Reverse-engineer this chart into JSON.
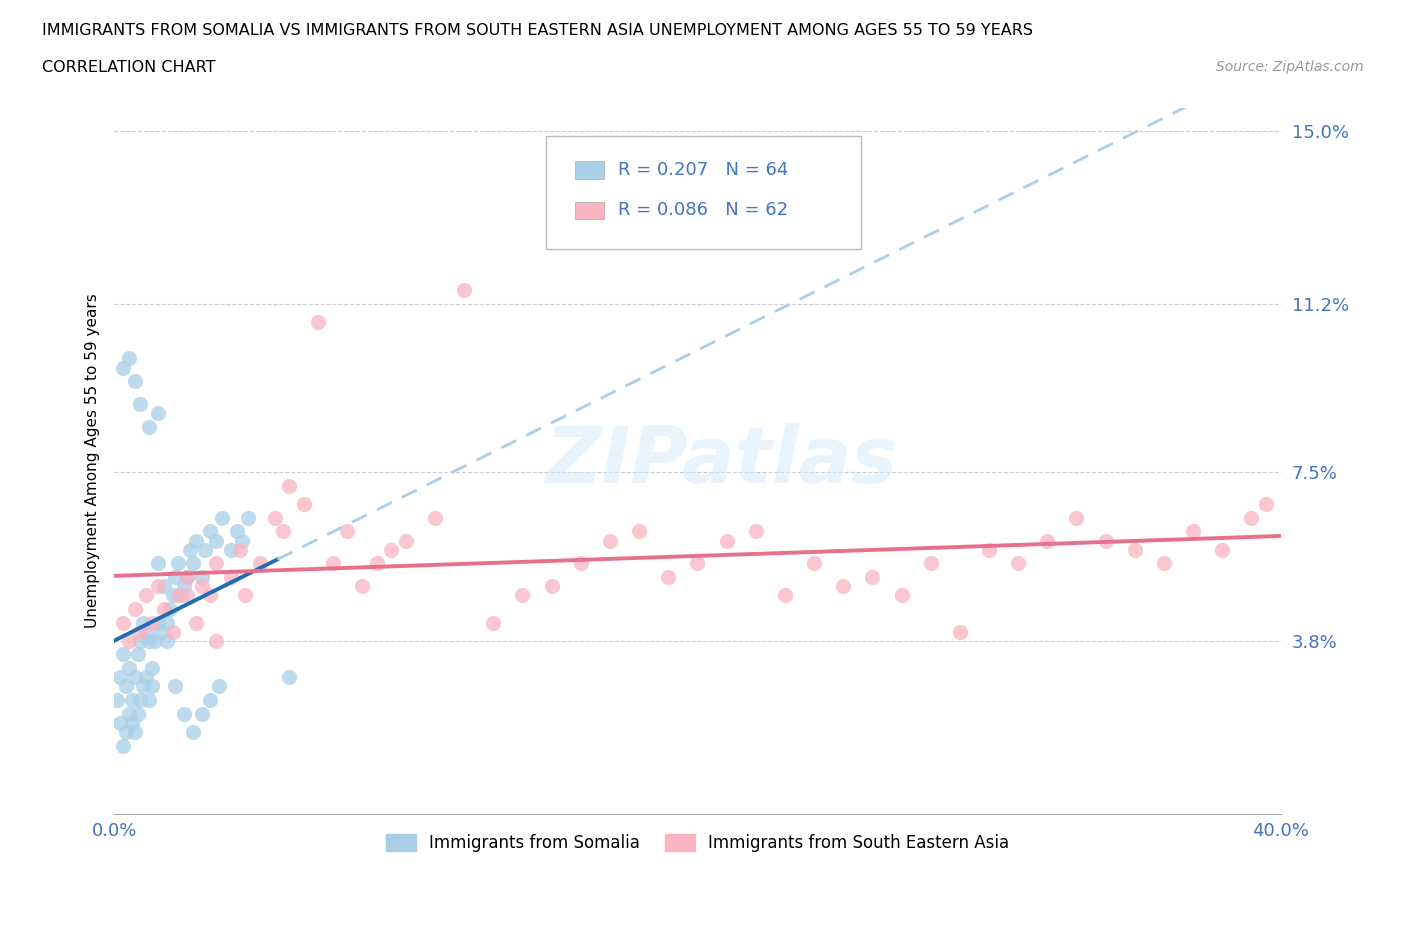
{
  "title_line1": "IMMIGRANTS FROM SOMALIA VS IMMIGRANTS FROM SOUTH EASTERN ASIA UNEMPLOYMENT AMONG AGES 55 TO 59 YEARS",
  "title_line2": "CORRELATION CHART",
  "source_text": "Source: ZipAtlas.com",
  "ylabel": "Unemployment Among Ages 55 to 59 years",
  "xlim": [
    0.0,
    0.4
  ],
  "ylim": [
    0.0,
    0.155
  ],
  "yticks": [
    0.038,
    0.075,
    0.112,
    0.15
  ],
  "ytick_labels": [
    "3.8%",
    "7.5%",
    "11.2%",
    "15.0%"
  ],
  "xticks": [
    0.0,
    0.05,
    0.1,
    0.15,
    0.2,
    0.25,
    0.3,
    0.35,
    0.4
  ],
  "xtick_labels": [
    "0.0%",
    "",
    "",
    "",
    "",
    "",
    "",
    "",
    "40.0%"
  ],
  "color_somalia": "#a8cfe8",
  "color_sea": "#f9b4c0",
  "color_somalia_line": "#1f6db5",
  "color_dashed": "#aacde8",
  "color_sea_line": "#e8708a",
  "legend_r_somalia": "R = 0.207",
  "legend_n_somalia": "N = 64",
  "legend_r_sea": "R = 0.086",
  "legend_n_sea": "N = 62",
  "watermark": "ZIPatlas",
  "somalia_x": [
    0.001,
    0.002,
    0.002,
    0.003,
    0.003,
    0.004,
    0.004,
    0.005,
    0.005,
    0.006,
    0.006,
    0.007,
    0.007,
    0.008,
    0.008,
    0.009,
    0.009,
    0.01,
    0.01,
    0.011,
    0.011,
    0.012,
    0.012,
    0.013,
    0.013,
    0.014,
    0.015,
    0.015,
    0.016,
    0.017,
    0.018,
    0.019,
    0.02,
    0.021,
    0.022,
    0.023,
    0.024,
    0.025,
    0.026,
    0.027,
    0.028,
    0.03,
    0.031,
    0.033,
    0.035,
    0.037,
    0.04,
    0.042,
    0.044,
    0.046,
    0.003,
    0.005,
    0.007,
    0.009,
    0.012,
    0.015,
    0.018,
    0.021,
    0.024,
    0.027,
    0.03,
    0.033,
    0.036,
    0.06
  ],
  "somalia_y": [
    0.025,
    0.02,
    0.03,
    0.015,
    0.035,
    0.018,
    0.028,
    0.022,
    0.032,
    0.02,
    0.025,
    0.018,
    0.03,
    0.022,
    0.035,
    0.025,
    0.038,
    0.028,
    0.042,
    0.03,
    0.04,
    0.025,
    0.038,
    0.028,
    0.032,
    0.038,
    0.042,
    0.055,
    0.04,
    0.05,
    0.038,
    0.045,
    0.048,
    0.052,
    0.055,
    0.048,
    0.05,
    0.052,
    0.058,
    0.055,
    0.06,
    0.052,
    0.058,
    0.062,
    0.06,
    0.065,
    0.058,
    0.062,
    0.06,
    0.065,
    0.098,
    0.1,
    0.095,
    0.09,
    0.085,
    0.088,
    0.042,
    0.028,
    0.022,
    0.018,
    0.022,
    0.025,
    0.028,
    0.03
  ],
  "sea_x": [
    0.003,
    0.005,
    0.007,
    0.009,
    0.011,
    0.013,
    0.015,
    0.017,
    0.02,
    0.022,
    0.025,
    0.028,
    0.03,
    0.033,
    0.035,
    0.04,
    0.043,
    0.045,
    0.05,
    0.055,
    0.058,
    0.06,
    0.065,
    0.07,
    0.075,
    0.08,
    0.085,
    0.09,
    0.095,
    0.1,
    0.11,
    0.12,
    0.13,
    0.14,
    0.15,
    0.16,
    0.17,
    0.18,
    0.19,
    0.2,
    0.21,
    0.22,
    0.23,
    0.24,
    0.25,
    0.26,
    0.27,
    0.28,
    0.29,
    0.3,
    0.31,
    0.32,
    0.33,
    0.34,
    0.35,
    0.36,
    0.37,
    0.38,
    0.39,
    0.395,
    0.025,
    0.035
  ],
  "sea_y": [
    0.042,
    0.038,
    0.045,
    0.04,
    0.048,
    0.042,
    0.05,
    0.045,
    0.04,
    0.048,
    0.052,
    0.042,
    0.05,
    0.048,
    0.055,
    0.052,
    0.058,
    0.048,
    0.055,
    0.065,
    0.062,
    0.072,
    0.068,
    0.108,
    0.055,
    0.062,
    0.05,
    0.055,
    0.058,
    0.06,
    0.065,
    0.115,
    0.042,
    0.048,
    0.05,
    0.055,
    0.06,
    0.062,
    0.052,
    0.055,
    0.06,
    0.062,
    0.048,
    0.055,
    0.05,
    0.052,
    0.048,
    0.055,
    0.04,
    0.058,
    0.055,
    0.06,
    0.065,
    0.06,
    0.058,
    0.055,
    0.062,
    0.058,
    0.065,
    0.068,
    0.048,
    0.038
  ]
}
